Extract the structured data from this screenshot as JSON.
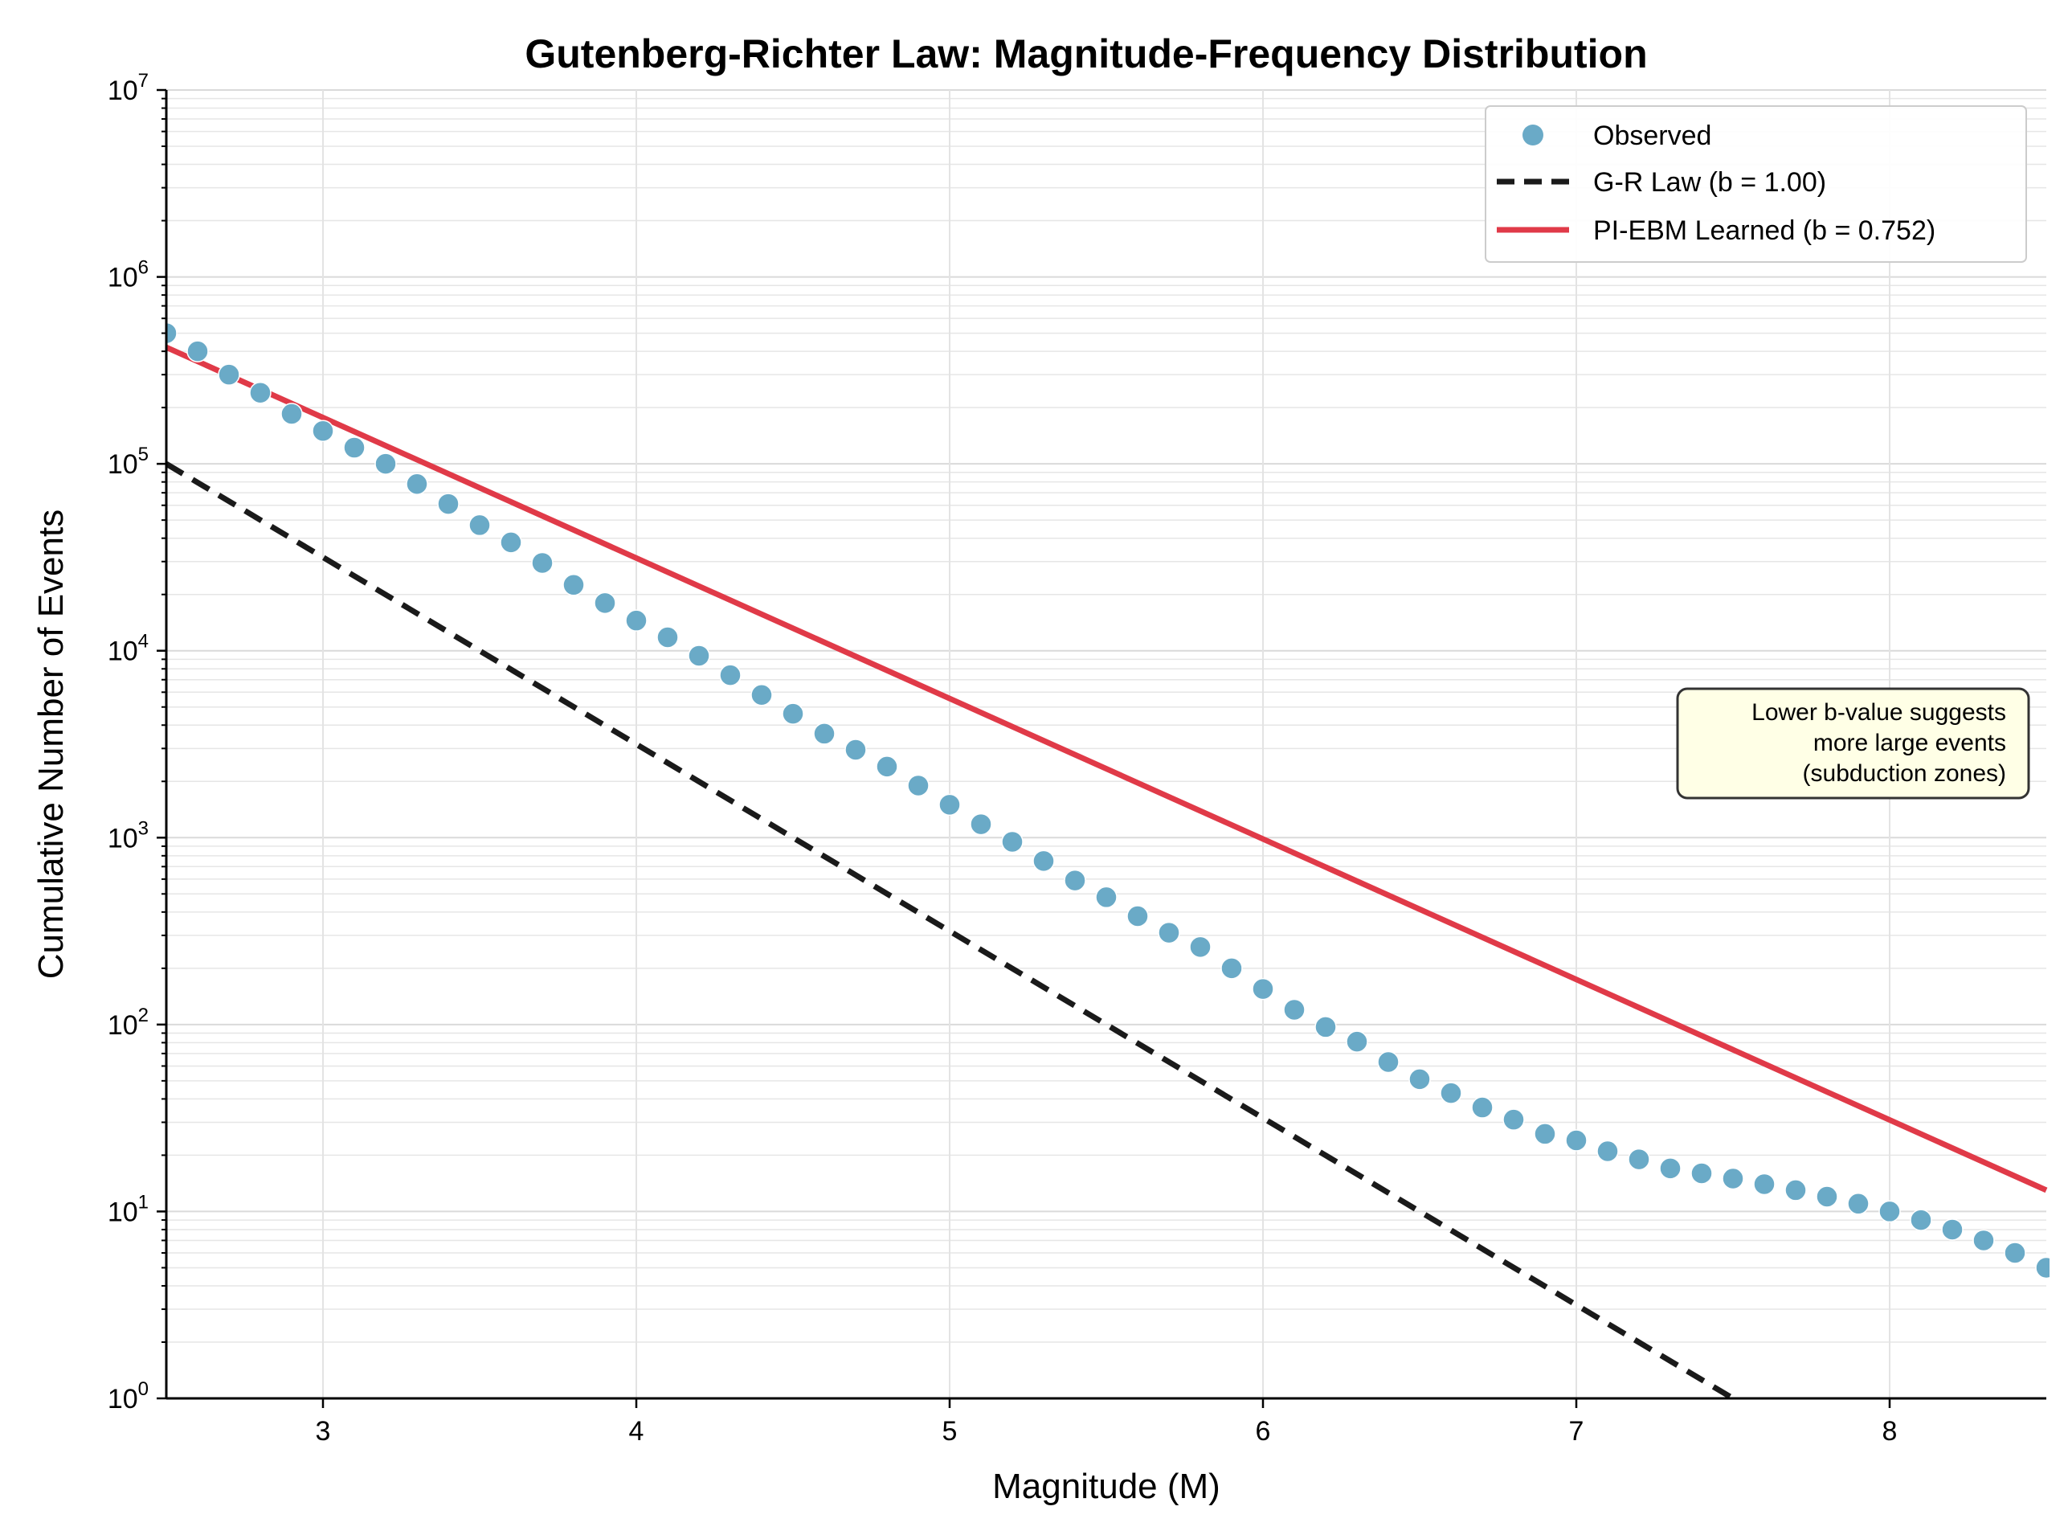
{
  "chart_data": {
    "type": "scatter",
    "title": "Gutenberg-Richter Law: Magnitude-Frequency Distribution",
    "xlabel": "Magnitude (M)",
    "ylabel": "Cumulative Number of Events",
    "xlim": [
      2.5,
      8.5
    ],
    "ylim_log10": [
      0,
      7
    ],
    "yscale": "log",
    "x_ticks": [
      3,
      4,
      5,
      6,
      7,
      8
    ],
    "y_ticks": [
      {
        "base": "10",
        "exp": "0",
        "value": 1
      },
      {
        "base": "10",
        "exp": "1",
        "value": 10
      },
      {
        "base": "10",
        "exp": "2",
        "value": 100
      },
      {
        "base": "10",
        "exp": "3",
        "value": 1000
      },
      {
        "base": "10",
        "exp": "4",
        "value": 10000
      },
      {
        "base": "10",
        "exp": "5",
        "value": 100000
      },
      {
        "base": "10",
        "exp": "6",
        "value": 1000000
      },
      {
        "base": "10",
        "exp": "7",
        "value": 10000000
      }
    ],
    "grid": true,
    "legend_position": "top-right",
    "series": [
      {
        "name": "Observed",
        "kind": "scatter",
        "color": "#6aaac7",
        "x": [
          2.5,
          2.6,
          2.7,
          2.8,
          2.9,
          3.0,
          3.1,
          3.2,
          3.3,
          3.4,
          3.5,
          3.6,
          3.7,
          3.8,
          3.9,
          4.0,
          4.1,
          4.2,
          4.3,
          4.4,
          4.5,
          4.6,
          4.7,
          4.8,
          4.9,
          5.0,
          5.1,
          5.2,
          5.3,
          5.4,
          5.5,
          5.6,
          5.7,
          5.8,
          5.9,
          6.0,
          6.1,
          6.2,
          6.3,
          6.4,
          6.5,
          6.6,
          6.7,
          6.8,
          6.9,
          7.0,
          7.1,
          7.2,
          7.3,
          7.4,
          7.5,
          7.6,
          7.7,
          7.8,
          7.9,
          8.0,
          8.1,
          8.2,
          8.3,
          8.4,
          8.5
        ],
        "y": [
          500000,
          400000,
          300000,
          240000,
          185000,
          150000,
          122000,
          100000,
          78000,
          61000,
          47000,
          38000,
          29500,
          22500,
          18000,
          14500,
          11800,
          9400,
          7400,
          5800,
          4600,
          3600,
          2950,
          2400,
          1900,
          1500,
          1180,
          950,
          750,
          590,
          480,
          380,
          310,
          260,
          200,
          155,
          120,
          97,
          81,
          63,
          51,
          43,
          36,
          31,
          26,
          24,
          21,
          19,
          17,
          16,
          15,
          14,
          13,
          12,
          11,
          10,
          9,
          8,
          7,
          6,
          5
        ]
      },
      {
        "name": "G-R Law (b = 1.00)",
        "kind": "line",
        "style": "dashed",
        "color": "#1a1a1a",
        "a": 7.5,
        "b": 1.0,
        "x": [
          2.5,
          7.5
        ],
        "y": [
          100000,
          1
        ]
      },
      {
        "name": "PI-EBM Learned (b = 0.752)",
        "kind": "line",
        "style": "solid",
        "color": "#e03a48",
        "a": 7.5,
        "b": 0.752,
        "x": [
          2.5,
          8.5
        ],
        "y": [
          420000,
          13
        ]
      }
    ],
    "annotation": {
      "lines": [
        "Lower b-value suggests",
        "more large events",
        "(subduction zones)"
      ],
      "background": "#ffffe6"
    }
  }
}
